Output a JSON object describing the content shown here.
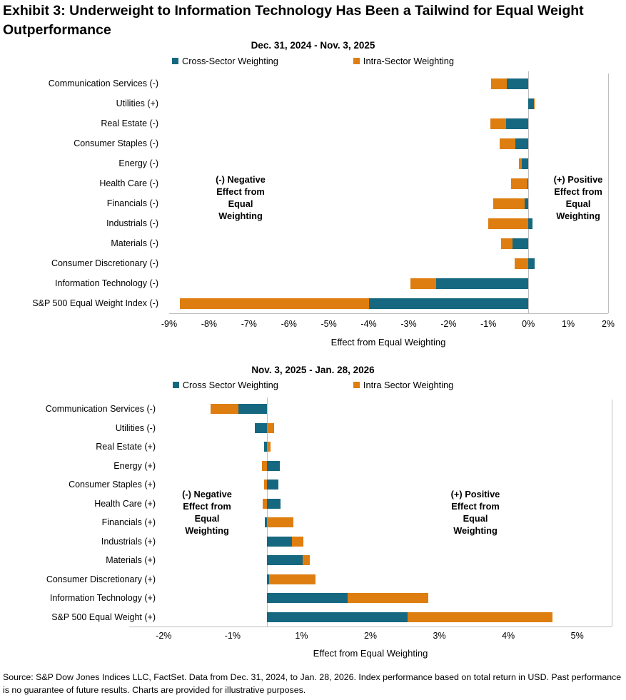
{
  "title": "Exhibit 3: Underweight to Information Technology Has Been a Tailwind for Equal Weight Outperformance",
  "source": "Source: S&P Dow Jones Indices LLC, FactSet. Data from Dec. 31, 2024, to Jan. 28, 2026. Index performance based on total return in USD. Past performance is no guarantee of future results. Charts are provided for illustrative purposes.",
  "colors": {
    "cross_sector": "#15687F",
    "intra_sector": "#DE7E10",
    "axis_line": "#BFBFBF",
    "text": "#000000"
  },
  "chart_data": [
    {
      "type": "bar",
      "orientation": "horizontal-stacked",
      "title": "Dec. 31, 2024 - Nov. 3, 2025",
      "xlabel": "Effect from Equal Weighting",
      "xlim": [
        -9,
        2
      ],
      "grid": false,
      "legend_position": "top",
      "categories": [
        "Communication Services (-)",
        "Utilities (+)",
        "Real Estate (-)",
        "Consumer Staples (-)",
        "Energy (-)",
        "Health Care (-)",
        "Financials (-)",
        "Industrials (-)",
        "Materials (-)",
        "Consumer Discretionary (-)",
        "Information Technology (-)",
        "S&P 500 Equal Weight Index (-)"
      ],
      "series": [
        {
          "name": "Cross-Sector Weighting",
          "color": "#15687F",
          "values": [
            -0.54,
            0.14,
            -0.55,
            -0.33,
            -0.17,
            -0.03,
            -0.09,
            0.11,
            -0.4,
            0.16,
            -2.31,
            -3.99
          ]
        },
        {
          "name": "Intra-Sector Weighting",
          "color": "#DE7E10",
          "values": [
            -0.39,
            0.02,
            -0.4,
            -0.39,
            -0.07,
            -0.4,
            -0.79,
            -1.01,
            -0.28,
            -0.34,
            -0.64,
            -4.75
          ]
        }
      ],
      "ticks": [
        {
          "label": "-9%",
          "pos": -9
        },
        {
          "label": "-8%",
          "pos": -8
        },
        {
          "label": "-7%",
          "pos": -7
        },
        {
          "label": "-6%",
          "pos": -6
        },
        {
          "label": "-5%",
          "pos": -5
        },
        {
          "label": "-4%",
          "pos": -4
        },
        {
          "label": "-3%",
          "pos": -3
        },
        {
          "label": "-2%",
          "pos": -2
        },
        {
          "label": "-1%",
          "pos": -1
        },
        {
          "label": "0%",
          "pos": 0
        },
        {
          "label": "1%",
          "pos": 1
        },
        {
          "label": "2%",
          "pos": 2
        }
      ],
      "annotations": [
        {
          "text": "(-) Negative\nEffect from\nEqual\nWeighting",
          "side": "negative"
        },
        {
          "text": "(+) Positive\nEffect from\nEqual\nWeighting",
          "side": "positive"
        }
      ]
    },
    {
      "type": "bar",
      "orientation": "horizontal-stacked",
      "title": "Nov. 3, 2025 - Jan. 28, 2026",
      "xlabel": "Effect from Equal Weighting",
      "xlim": [
        -2,
        5
      ],
      "grid": false,
      "legend_position": "top",
      "categories": [
        "Communication Services (-)",
        "Utilities (-)",
        "Real Estate (+)",
        "Energy (+)",
        "Consumer Staples (+)",
        "Health Care (+)",
        "Financials (+)",
        "Industrials (+)",
        "Materials (+)",
        "Consumer Discretionary (+)",
        "Information Technology (+)",
        "S&P 500 Equal Weight (+)"
      ],
      "series": [
        {
          "name": "Cross Sector Weighting",
          "color": "#15687F",
          "values": [
            -0.42,
            -0.18,
            -0.04,
            0.18,
            0.16,
            0.2,
            -0.03,
            0.36,
            0.52,
            0.03,
            1.17,
            2.04
          ]
        },
        {
          "name": "Intra Sector Weighting",
          "color": "#DE7E10",
          "values": [
            -0.4,
            0.1,
            0.05,
            -0.07,
            -0.04,
            -0.06,
            0.38,
            0.17,
            0.1,
            0.67,
            1.17,
            2.1
          ]
        }
      ],
      "ticks": [
        {
          "label": "-2%",
          "pos": -1.5
        },
        {
          "label": "-1%",
          "pos": -0.5
        },
        {
          "label": "1%",
          "pos": 0.5
        },
        {
          "label": "2%",
          "pos": 1.5
        },
        {
          "label": "3%",
          "pos": 2.5
        },
        {
          "label": "4%",
          "pos": 3.5
        },
        {
          "label": "5%",
          "pos": 4.5
        }
      ],
      "annotations": [
        {
          "text": "(-) Negative\nEffect from\nEqual\nWeighting",
          "side": "negative"
        },
        {
          "text": "(+) Positive\nEffect from\nEqual\nWeighting",
          "side": "positive"
        }
      ]
    }
  ]
}
